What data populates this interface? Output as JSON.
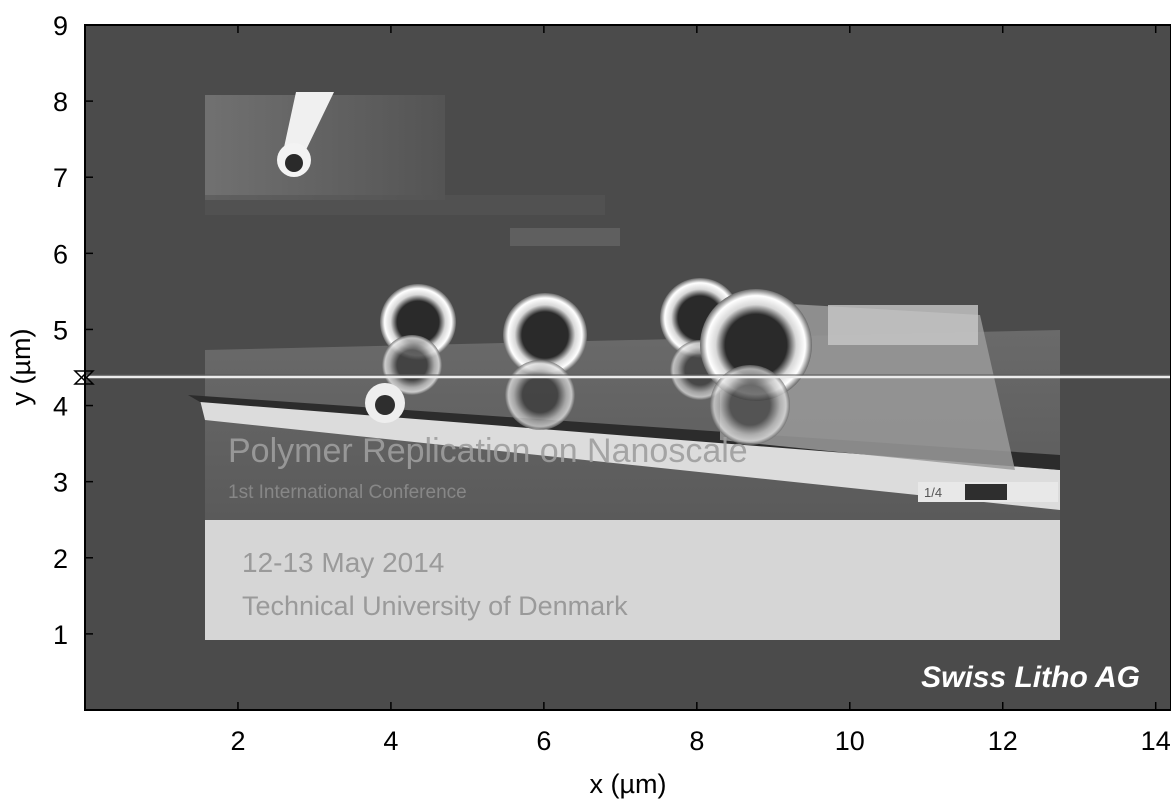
{
  "axes": {
    "xlabel": "x (µm)",
    "ylabel": "y (µm)",
    "xlim": [
      0,
      14.2
    ],
    "ylim": [
      0,
      9
    ],
    "x_ticks": [
      "2",
      "4",
      "6",
      "8",
      "10",
      "12",
      "14"
    ],
    "y_ticks": [
      "1",
      "2",
      "3",
      "4",
      "5",
      "6",
      "7",
      "8",
      "9"
    ]
  },
  "scan_line": {
    "y_value": 4.4,
    "color": "#e8e8e8"
  },
  "watermark": {
    "text": "Swiss Litho AG",
    "color": "#ffffff"
  },
  "imaged_slide": {
    "title": "Polymer Replication on Nanoscale",
    "subtitle": "1st International Conference",
    "date": "12-13 May 2014",
    "venue": "Technical University of Denmark",
    "pager": "1/4"
  },
  "colors": {
    "background": "#4b4b4b",
    "frame": "#000000"
  }
}
